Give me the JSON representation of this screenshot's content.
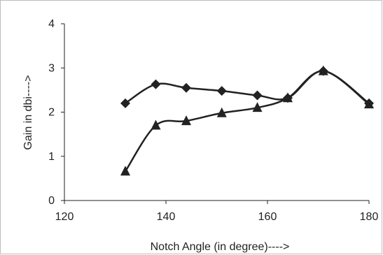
{
  "chart_data": {
    "type": "line",
    "title": "",
    "xlabel": "Notch Angle (in degree)---->",
    "ylabel": "Gain in dbi---->",
    "xlim": [
      120,
      180
    ],
    "ylim": [
      0,
      4
    ],
    "x_ticks": [
      120,
      140,
      160,
      180
    ],
    "y_ticks": [
      0,
      1,
      2,
      3,
      4
    ],
    "grid": false,
    "legend": "none",
    "series": [
      {
        "marker": "diamond",
        "color": "#222222",
        "smooth": true,
        "points": [
          {
            "x": 132,
            "y": 2.2
          },
          {
            "x": 138,
            "y": 2.63
          },
          {
            "x": 144,
            "y": 2.55
          },
          {
            "x": 151,
            "y": 2.48
          },
          {
            "x": 158,
            "y": 2.38
          },
          {
            "x": 164,
            "y": 2.32
          },
          {
            "x": 171,
            "y": 2.93
          },
          {
            "x": 180,
            "y": 2.2
          }
        ]
      },
      {
        "marker": "triangle",
        "color": "#222222",
        "smooth": true,
        "points": [
          {
            "x": 132,
            "y": 0.66
          },
          {
            "x": 138,
            "y": 1.7
          },
          {
            "x": 144,
            "y": 1.8
          },
          {
            "x": 151,
            "y": 1.98
          },
          {
            "x": 158,
            "y": 2.1
          },
          {
            "x": 164,
            "y": 2.32
          },
          {
            "x": 171,
            "y": 2.93
          },
          {
            "x": 180,
            "y": 2.18
          }
        ]
      }
    ]
  }
}
